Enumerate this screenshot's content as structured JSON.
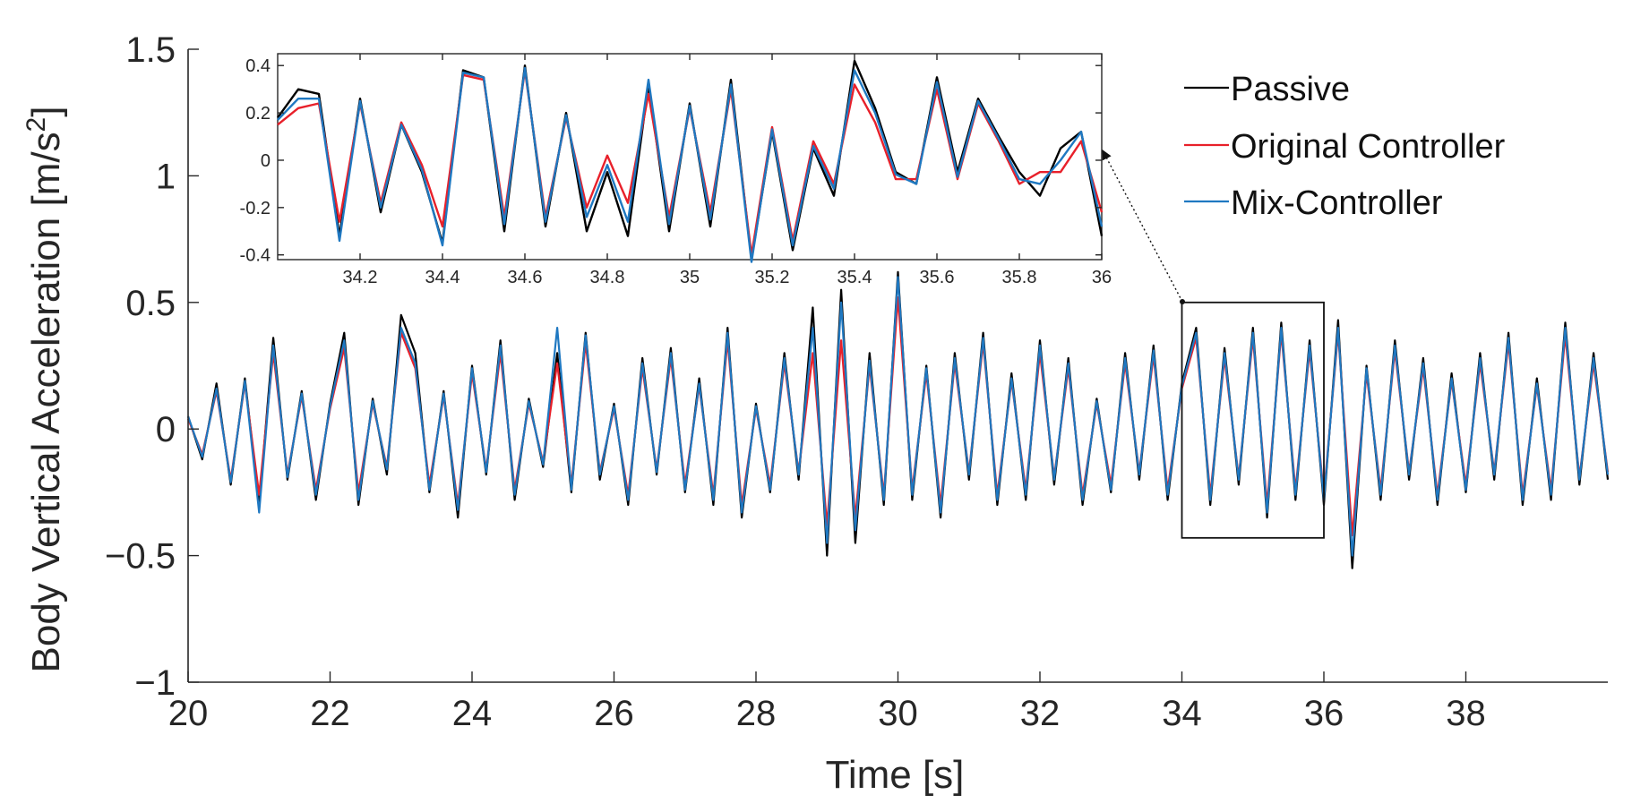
{
  "chart_data": [
    {
      "id": "main",
      "type": "line",
      "title": "",
      "xlabel": "Time [s]",
      "ylabel": "Body Vertical Acceleration [m/s^2]",
      "ylabel_base": "Body Vertical Acceleration [m/s",
      "ylabel_sup": "2",
      "ylabel_close": "]",
      "xlim": [
        20,
        40
      ],
      "ylim": [
        -1,
        1.5
      ],
      "xticks": [
        20,
        22,
        24,
        26,
        28,
        30,
        32,
        34,
        36,
        38
      ],
      "xtick_labels": [
        "20",
        "22",
        "24",
        "26",
        "28",
        "30",
        "32",
        "34",
        "36",
        "38"
      ],
      "yticks": [
        -1,
        -0.5,
        0,
        0.5,
        1,
        1.5
      ],
      "ytick_labels": [
        "−1",
        "−0.5",
        "0",
        "0.5",
        "1",
        "1.5"
      ],
      "grid": false,
      "legend": {
        "placement": "top-right",
        "entries": [
          "Passive",
          "Original Controller",
          "Mix-Controller"
        ]
      },
      "zoom_box": {
        "x_range": [
          34,
          36
        ],
        "y_range": [
          -0.43,
          0.5
        ]
      },
      "series": [
        {
          "name": "Passive",
          "color": "#000000",
          "x": [
            20.0,
            20.2,
            20.4,
            20.6,
            20.8,
            21.0,
            21.2,
            21.4,
            21.6,
            21.8,
            22.0,
            22.2,
            22.4,
            22.6,
            22.8,
            23.0,
            23.2,
            23.4,
            23.6,
            23.8,
            24.0,
            24.2,
            24.4,
            24.6,
            24.8,
            25.0,
            25.2,
            25.4,
            25.6,
            25.8,
            26.0,
            26.2,
            26.4,
            26.6,
            26.8,
            27.0,
            27.2,
            27.4,
            27.6,
            27.8,
            28.0,
            28.2,
            28.4,
            28.6,
            28.8,
            29.0,
            29.2,
            29.4,
            29.6,
            29.8,
            30.0,
            30.2,
            30.4,
            30.6,
            30.8,
            31.0,
            31.2,
            31.4,
            31.6,
            31.8,
            32.0,
            32.2,
            32.4,
            32.6,
            32.8,
            33.0,
            33.2,
            33.4,
            33.6,
            33.8,
            34.0,
            34.2,
            34.4,
            34.6,
            34.8,
            35.0,
            35.2,
            35.4,
            35.6,
            35.8,
            36.0,
            36.2,
            36.4,
            36.6,
            36.8,
            37.0,
            37.2,
            37.4,
            37.6,
            37.8,
            38.0,
            38.2,
            38.4,
            38.6,
            38.8,
            39.0,
            39.2,
            39.4,
            39.6,
            39.8,
            40.0
          ],
          "y": [
            0.05,
            -0.12,
            0.18,
            -0.22,
            0.2,
            -0.3,
            0.36,
            -0.2,
            0.15,
            -0.28,
            0.1,
            0.38,
            -0.3,
            0.12,
            -0.18,
            0.45,
            0.3,
            -0.25,
            0.15,
            -0.35,
            0.25,
            -0.18,
            0.35,
            -0.28,
            0.12,
            -0.15,
            0.3,
            -0.25,
            0.38,
            -0.2,
            0.1,
            -0.3,
            0.28,
            -0.18,
            0.32,
            -0.25,
            0.2,
            -0.3,
            0.4,
            -0.35,
            0.1,
            -0.25,
            0.3,
            -0.2,
            0.48,
            -0.5,
            0.55,
            -0.45,
            0.3,
            -0.3,
            0.62,
            -0.28,
            0.25,
            -0.35,
            0.3,
            -0.2,
            0.38,
            -0.3,
            0.22,
            -0.28,
            0.35,
            -0.22,
            0.28,
            -0.3,
            0.12,
            -0.25,
            0.3,
            -0.2,
            0.33,
            -0.28,
            0.18,
            0.4,
            -0.3,
            0.32,
            -0.22,
            0.4,
            -0.35,
            0.42,
            -0.28,
            0.35,
            -0.3,
            0.43,
            -0.55,
            0.25,
            -0.28,
            0.35,
            -0.2,
            0.28,
            -0.3,
            0.22,
            -0.25,
            0.3,
            -0.2,
            0.38,
            -0.3,
            0.2,
            -0.28,
            0.42,
            -0.22,
            0.3,
            -0.2
          ]
        },
        {
          "name": "Original Controller",
          "color": "#e8202a",
          "x": [
            20.0,
            20.2,
            20.4,
            20.6,
            20.8,
            21.0,
            21.2,
            21.4,
            21.6,
            21.8,
            22.0,
            22.2,
            22.4,
            22.6,
            22.8,
            23.0,
            23.2,
            23.4,
            23.6,
            23.8,
            24.0,
            24.2,
            24.4,
            24.6,
            24.8,
            25.0,
            25.2,
            25.4,
            25.6,
            25.8,
            26.0,
            26.2,
            26.4,
            26.6,
            26.8,
            27.0,
            27.2,
            27.4,
            27.6,
            27.8,
            28.0,
            28.2,
            28.4,
            28.6,
            28.8,
            29.0,
            29.2,
            29.4,
            29.6,
            29.8,
            30.0,
            30.2,
            30.4,
            30.6,
            30.8,
            31.0,
            31.2,
            31.4,
            31.6,
            31.8,
            32.0,
            32.2,
            32.4,
            32.6,
            32.8,
            33.0,
            33.2,
            33.4,
            33.6,
            33.8,
            34.0,
            34.2,
            34.4,
            34.6,
            34.8,
            35.0,
            35.2,
            35.4,
            35.6,
            35.8,
            36.0,
            36.2,
            36.4,
            36.6,
            36.8,
            37.0,
            37.2,
            37.4,
            37.6,
            37.8,
            38.0,
            38.2,
            38.4,
            38.6,
            38.8,
            39.0,
            39.2,
            39.4,
            39.6,
            39.8,
            40.0
          ],
          "y": [
            0.04,
            -0.1,
            0.15,
            -0.2,
            0.18,
            -0.26,
            0.3,
            -0.18,
            0.13,
            -0.24,
            0.08,
            0.32,
            -0.25,
            0.1,
            -0.15,
            0.38,
            0.24,
            -0.22,
            0.13,
            -0.3,
            0.22,
            -0.16,
            0.3,
            -0.24,
            0.1,
            -0.13,
            0.26,
            -0.22,
            0.34,
            -0.17,
            0.08,
            -0.26,
            0.24,
            -0.16,
            0.28,
            -0.22,
            0.17,
            -0.26,
            0.35,
            -0.3,
            0.08,
            -0.22,
            0.26,
            -0.17,
            0.3,
            -0.38,
            0.35,
            -0.35,
            0.25,
            -0.26,
            0.52,
            -0.24,
            0.22,
            -0.3,
            0.26,
            -0.17,
            0.34,
            -0.26,
            0.19,
            -0.24,
            0.3,
            -0.19,
            0.24,
            -0.26,
            0.1,
            -0.22,
            0.26,
            -0.17,
            0.29,
            -0.24,
            0.16,
            0.36,
            -0.26,
            0.28,
            -0.19,
            0.36,
            -0.3,
            0.38,
            -0.24,
            0.31,
            -0.26,
            0.38,
            -0.42,
            0.22,
            -0.24,
            0.31,
            -0.17,
            0.24,
            -0.26,
            0.19,
            -0.22,
            0.26,
            -0.17,
            0.34,
            -0.26,
            0.17,
            -0.24,
            0.37,
            -0.19,
            0.26,
            -0.17
          ]
        },
        {
          "name": "Mix-Controller",
          "color": "#1f78c1",
          "x": [
            20.0,
            20.2,
            20.4,
            20.6,
            20.8,
            21.0,
            21.2,
            21.4,
            21.6,
            21.8,
            22.0,
            22.2,
            22.4,
            22.6,
            22.8,
            23.0,
            23.2,
            23.4,
            23.6,
            23.8,
            24.0,
            24.2,
            24.4,
            24.6,
            24.8,
            25.0,
            25.2,
            25.4,
            25.6,
            25.8,
            26.0,
            26.2,
            26.4,
            26.6,
            26.8,
            27.0,
            27.2,
            27.4,
            27.6,
            27.8,
            28.0,
            28.2,
            28.4,
            28.6,
            28.8,
            29.0,
            29.2,
            29.4,
            29.6,
            29.8,
            30.0,
            30.2,
            30.4,
            30.6,
            30.8,
            31.0,
            31.2,
            31.4,
            31.6,
            31.8,
            32.0,
            32.2,
            32.4,
            32.6,
            32.8,
            33.0,
            33.2,
            33.4,
            33.6,
            33.8,
            34.0,
            34.2,
            34.4,
            34.6,
            34.8,
            35.0,
            35.2,
            35.4,
            35.6,
            35.8,
            36.0,
            36.2,
            36.4,
            36.6,
            36.8,
            37.0,
            37.2,
            37.4,
            37.6,
            37.8,
            38.0,
            38.2,
            38.4,
            38.6,
            38.8,
            39.0,
            39.2,
            39.4,
            39.6,
            39.8,
            40.0
          ],
          "y": [
            0.05,
            -0.11,
            0.16,
            -0.21,
            0.19,
            -0.33,
            0.33,
            -0.19,
            0.14,
            -0.26,
            0.09,
            0.35,
            -0.28,
            0.11,
            -0.16,
            0.4,
            0.26,
            -0.24,
            0.14,
            -0.32,
            0.24,
            -0.17,
            0.33,
            -0.26,
            0.11,
            -0.14,
            0.4,
            -0.24,
            0.37,
            -0.18,
            0.09,
            -0.28,
            0.26,
            -0.17,
            0.3,
            -0.24,
            0.18,
            -0.28,
            0.38,
            -0.33,
            0.09,
            -0.24,
            0.28,
            -0.18,
            0.4,
            -0.45,
            0.5,
            -0.4,
            0.27,
            -0.28,
            0.6,
            -0.26,
            0.24,
            -0.33,
            0.28,
            -0.18,
            0.36,
            -0.28,
            0.2,
            -0.26,
            0.33,
            -0.2,
            0.26,
            -0.28,
            0.11,
            -0.24,
            0.28,
            -0.18,
            0.31,
            -0.26,
            0.17,
            0.38,
            -0.28,
            0.3,
            -0.2,
            0.38,
            -0.33,
            0.4,
            -0.26,
            0.33,
            -0.28,
            0.4,
            -0.5,
            0.24,
            -0.26,
            0.33,
            -0.18,
            0.26,
            -0.28,
            0.2,
            -0.24,
            0.28,
            -0.18,
            0.36,
            -0.28,
            0.18,
            -0.26,
            0.4,
            -0.2,
            0.28,
            -0.18
          ]
        }
      ]
    },
    {
      "id": "inset",
      "type": "line",
      "title": "",
      "xlabel": "",
      "ylabel": "",
      "xlim": [
        34.0,
        36.0
      ],
      "ylim": [
        -0.42,
        0.45
      ],
      "xticks": [
        34.2,
        34.4,
        34.6,
        34.8,
        35,
        35.2,
        35.4,
        35.6,
        35.8,
        36
      ],
      "xtick_labels": [
        "34.2",
        "34.4",
        "34.6",
        "34.8",
        "35",
        "35.2",
        "35.4",
        "35.6",
        "35.8",
        "36"
      ],
      "yticks": [
        -0.4,
        -0.2,
        0,
        0.2,
        0.4
      ],
      "ytick_labels": [
        "-0.4",
        "-0.2",
        "0",
        "0.2",
        "0.4"
      ],
      "grid": false,
      "series": [
        {
          "name": "Passive",
          "color": "#000000",
          "x": [
            34.0,
            34.05,
            34.1,
            34.15,
            34.2,
            34.25,
            34.3,
            34.35,
            34.4,
            34.45,
            34.5,
            34.55,
            34.6,
            34.65,
            34.7,
            34.75,
            34.8,
            34.85,
            34.9,
            34.95,
            35.0,
            35.05,
            35.1,
            35.15,
            35.2,
            35.25,
            35.3,
            35.35,
            35.4,
            35.45,
            35.5,
            35.55,
            35.6,
            35.65,
            35.7,
            35.75,
            35.8,
            35.85,
            35.9,
            35.95,
            36.0
          ],
          "y": [
            0.18,
            0.3,
            0.28,
            -0.32,
            0.26,
            -0.22,
            0.15,
            -0.05,
            -0.35,
            0.38,
            0.35,
            -0.3,
            0.4,
            -0.28,
            0.2,
            -0.3,
            -0.05,
            -0.32,
            0.32,
            -0.3,
            0.24,
            -0.28,
            0.34,
            -0.42,
            0.12,
            -0.38,
            0.05,
            -0.15,
            0.42,
            0.22,
            -0.05,
            -0.1,
            0.35,
            -0.05,
            0.26,
            0.1,
            -0.05,
            -0.15,
            0.05,
            0.12,
            -0.32
          ]
        },
        {
          "name": "Original Controller",
          "color": "#e8202a",
          "x": [
            34.0,
            34.05,
            34.1,
            34.15,
            34.2,
            34.25,
            34.3,
            34.35,
            34.4,
            34.45,
            34.5,
            34.55,
            34.6,
            34.65,
            34.7,
            34.75,
            34.8,
            34.85,
            34.9,
            34.95,
            35.0,
            35.05,
            35.1,
            35.15,
            35.2,
            35.25,
            35.3,
            35.35,
            35.4,
            35.45,
            35.5,
            35.55,
            35.6,
            35.65,
            35.7,
            35.75,
            35.8,
            35.85,
            35.9,
            35.95,
            36.0
          ],
          "y": [
            0.15,
            0.22,
            0.24,
            -0.26,
            0.24,
            -0.18,
            0.16,
            -0.02,
            -0.28,
            0.36,
            0.34,
            -0.24,
            0.38,
            -0.24,
            0.18,
            -0.2,
            0.02,
            -0.18,
            0.28,
            -0.24,
            0.22,
            -0.22,
            0.3,
            -0.4,
            0.14,
            -0.34,
            0.08,
            -0.1,
            0.32,
            0.16,
            -0.08,
            -0.08,
            0.3,
            -0.08,
            0.24,
            0.08,
            -0.1,
            -0.05,
            -0.05,
            0.08,
            -0.22
          ]
        },
        {
          "name": "Mix-Controller",
          "color": "#1f78c1",
          "x": [
            34.0,
            34.05,
            34.1,
            34.15,
            34.2,
            34.25,
            34.3,
            34.35,
            34.4,
            34.45,
            34.5,
            34.55,
            34.6,
            34.65,
            34.7,
            34.75,
            34.8,
            34.85,
            34.9,
            34.95,
            35.0,
            35.05,
            35.1,
            35.15,
            35.2,
            35.25,
            35.3,
            35.35,
            35.4,
            35.45,
            35.5,
            35.55,
            35.6,
            35.65,
            35.7,
            35.75,
            35.8,
            35.85,
            35.9,
            35.95,
            36.0
          ],
          "y": [
            0.17,
            0.26,
            0.26,
            -0.34,
            0.25,
            -0.2,
            0.15,
            -0.04,
            -0.36,
            0.37,
            0.35,
            -0.27,
            0.39,
            -0.26,
            0.19,
            -0.24,
            -0.02,
            -0.26,
            0.34,
            -0.27,
            0.23,
            -0.25,
            0.32,
            -0.43,
            0.13,
            -0.36,
            0.06,
            -0.12,
            0.38,
            0.2,
            -0.06,
            -0.1,
            0.33,
            -0.07,
            0.25,
            0.09,
            -0.08,
            -0.1,
            0.0,
            0.12,
            -0.28
          ]
        }
      ]
    }
  ]
}
